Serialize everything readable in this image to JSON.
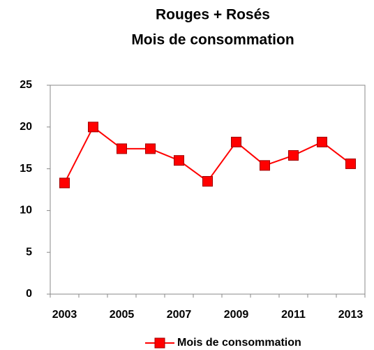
{
  "chart_data": {
    "type": "line",
    "title": [
      "Rouges + Rosés",
      "Mois de consommation"
    ],
    "categories": [
      "2003",
      null,
      "2005",
      null,
      "2007",
      null,
      "2009",
      null,
      "2011",
      null,
      "2013"
    ],
    "series": [
      {
        "name": "Mois de consommation",
        "color": "#ff0000",
        "values": [
          13.3,
          20,
          17.4,
          17.4,
          16,
          13.5,
          18.2,
          15.4,
          16.6,
          18.2,
          15.6
        ]
      }
    ],
    "ylim": [
      0,
      25
    ],
    "yticks": [
      0,
      5,
      10,
      15,
      20,
      25
    ],
    "grid": false,
    "legend": "bottom"
  }
}
